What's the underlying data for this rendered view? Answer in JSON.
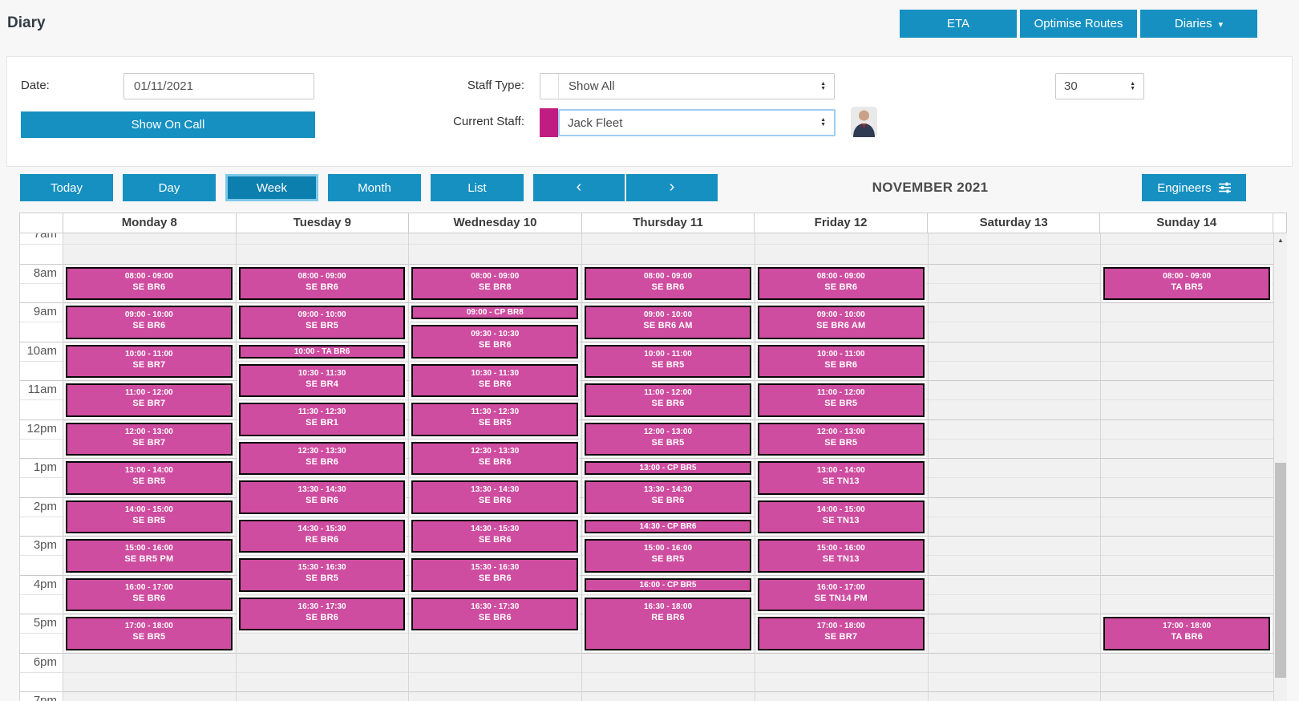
{
  "header": {
    "title": "Diary",
    "buttons": [
      {
        "name": "eta-button",
        "label": "ETA"
      },
      {
        "name": "optimise-routes-button",
        "label": "Optimise Routes"
      },
      {
        "name": "diaries-button",
        "label": "Diaries",
        "caret": true
      }
    ]
  },
  "filters": {
    "date_label": "Date:",
    "date_value": "01/11/2021",
    "show_on_call_label": "Show On Call",
    "staff_type_label": "Staff Type:",
    "staff_type_value": "Show All",
    "current_staff_label": "Current Staff:",
    "current_staff_value": "Jack Fleet",
    "current_staff_color": "#c01d82",
    "page_size_value": "30"
  },
  "toolbar": {
    "view_buttons": [
      "Today",
      "Day",
      "Week",
      "Month",
      "List"
    ],
    "active_view": "Week",
    "prev_icon": "‹",
    "next_icon": "›",
    "title": "NOVEMBER 2021",
    "engineers_label": "Engineers"
  },
  "calendar": {
    "days": [
      "Monday 8",
      "Tuesday 9",
      "Wednesday 10",
      "Thursday 11",
      "Friday 12",
      "Saturday 13",
      "Sunday 14"
    ],
    "time_labels": [
      "7am",
      "8am",
      "9am",
      "10am",
      "11am",
      "12pm",
      "1pm",
      "2pm",
      "3pm",
      "4pm",
      "5pm",
      "6pm",
      "7pm"
    ],
    "event_color": "#ce4da0",
    "events": [
      {
        "day": 0,
        "start": "08:00",
        "end": "09:00",
        "time": "08:00 - 09:00",
        "label": "SE BR6"
      },
      {
        "day": 0,
        "start": "09:00",
        "end": "10:00",
        "time": "09:00 - 10:00",
        "label": "SE BR6"
      },
      {
        "day": 0,
        "start": "10:00",
        "end": "11:00",
        "time": "10:00 - 11:00",
        "label": "SE BR7"
      },
      {
        "day": 0,
        "start": "11:00",
        "end": "12:00",
        "time": "11:00 - 12:00",
        "label": "SE BR7"
      },
      {
        "day": 0,
        "start": "12:00",
        "end": "13:00",
        "time": "12:00 - 13:00",
        "label": "SE BR7"
      },
      {
        "day": 0,
        "start": "13:00",
        "end": "14:00",
        "time": "13:00 - 14:00",
        "label": "SE BR5"
      },
      {
        "day": 0,
        "start": "14:00",
        "end": "15:00",
        "time": "14:00 - 15:00",
        "label": "SE BR5"
      },
      {
        "day": 0,
        "start": "15:00",
        "end": "16:00",
        "time": "15:00 - 16:00",
        "label": "SE BR5 PM"
      },
      {
        "day": 0,
        "start": "16:00",
        "end": "17:00",
        "time": "16:00 - 17:00",
        "label": "SE BR6"
      },
      {
        "day": 0,
        "start": "17:00",
        "end": "18:00",
        "time": "17:00 - 18:00",
        "label": "SE BR5"
      },
      {
        "day": 1,
        "start": "08:00",
        "end": "09:00",
        "time": "08:00 - 09:00",
        "label": "SE BR6"
      },
      {
        "day": 1,
        "start": "09:00",
        "end": "10:00",
        "time": "09:00 - 10:00",
        "label": "SE BR5"
      },
      {
        "day": 1,
        "start": "10:00",
        "end": "10:30",
        "time": "10:00 - TA BR6",
        "label": "",
        "single": true
      },
      {
        "day": 1,
        "start": "10:30",
        "end": "11:30",
        "time": "10:30 - 11:30",
        "label": "SE BR4"
      },
      {
        "day": 1,
        "start": "11:30",
        "end": "12:30",
        "time": "11:30 - 12:30",
        "label": "SE BR1"
      },
      {
        "day": 1,
        "start": "12:30",
        "end": "13:30",
        "time": "12:30 - 13:30",
        "label": "SE BR6"
      },
      {
        "day": 1,
        "start": "13:30",
        "end": "14:30",
        "time": "13:30 - 14:30",
        "label": "SE BR6"
      },
      {
        "day": 1,
        "start": "14:30",
        "end": "15:30",
        "time": "14:30 - 15:30",
        "label": "RE BR6"
      },
      {
        "day": 1,
        "start": "15:30",
        "end": "16:30",
        "time": "15:30 - 16:30",
        "label": "SE BR5"
      },
      {
        "day": 1,
        "start": "16:30",
        "end": "17:30",
        "time": "16:30 - 17:30",
        "label": "SE BR6"
      },
      {
        "day": 2,
        "start": "08:00",
        "end": "09:00",
        "time": "08:00 - 09:00",
        "label": "SE BR8"
      },
      {
        "day": 2,
        "start": "09:00",
        "end": "09:30",
        "time": "09:00 - CP BR8",
        "label": "",
        "single": true
      },
      {
        "day": 2,
        "start": "09:30",
        "end": "10:30",
        "time": "09:30 - 10:30",
        "label": "SE BR6"
      },
      {
        "day": 2,
        "start": "10:30",
        "end": "11:30",
        "time": "10:30 - 11:30",
        "label": "SE BR6"
      },
      {
        "day": 2,
        "start": "11:30",
        "end": "12:30",
        "time": "11:30 - 12:30",
        "label": "SE BR5"
      },
      {
        "day": 2,
        "start": "12:30",
        "end": "13:30",
        "time": "12:30 - 13:30",
        "label": "SE BR6"
      },
      {
        "day": 2,
        "start": "13:30",
        "end": "14:30",
        "time": "13:30 - 14:30",
        "label": "SE BR6"
      },
      {
        "day": 2,
        "start": "14:30",
        "end": "15:30",
        "time": "14:30 - 15:30",
        "label": "SE BR6"
      },
      {
        "day": 2,
        "start": "15:30",
        "end": "16:30",
        "time": "15:30 - 16:30",
        "label": "SE BR6"
      },
      {
        "day": 2,
        "start": "16:30",
        "end": "17:30",
        "time": "16:30 - 17:30",
        "label": "SE BR6"
      },
      {
        "day": 3,
        "start": "08:00",
        "end": "09:00",
        "time": "08:00 - 09:00",
        "label": "SE BR6"
      },
      {
        "day": 3,
        "start": "09:00",
        "end": "10:00",
        "time": "09:00 - 10:00",
        "label": "SE BR6 AM"
      },
      {
        "day": 3,
        "start": "10:00",
        "end": "11:00",
        "time": "10:00 - 11:00",
        "label": "SE BR5"
      },
      {
        "day": 3,
        "start": "11:00",
        "end": "12:00",
        "time": "11:00 - 12:00",
        "label": "SE BR6"
      },
      {
        "day": 3,
        "start": "12:00",
        "end": "13:00",
        "time": "12:00 - 13:00",
        "label": "SE BR5"
      },
      {
        "day": 3,
        "start": "13:00",
        "end": "13:30",
        "time": "13:00 - CP BR5",
        "label": "",
        "single": true
      },
      {
        "day": 3,
        "start": "13:30",
        "end": "14:30",
        "time": "13:30 - 14:30",
        "label": "SE BR6"
      },
      {
        "day": 3,
        "start": "14:30",
        "end": "15:00",
        "time": "14:30 - CP BR6",
        "label": "",
        "single": true
      },
      {
        "day": 3,
        "start": "15:00",
        "end": "16:00",
        "time": "15:00 - 16:00",
        "label": "SE BR5"
      },
      {
        "day": 3,
        "start": "16:00",
        "end": "16:30",
        "time": "16:00 - CP BR5",
        "label": "",
        "single": true
      },
      {
        "day": 3,
        "start": "16:30",
        "end": "18:00",
        "time": "16:30 - 18:00",
        "label": "RE BR6"
      },
      {
        "day": 4,
        "start": "08:00",
        "end": "09:00",
        "time": "08:00 - 09:00",
        "label": "SE BR6"
      },
      {
        "day": 4,
        "start": "09:00",
        "end": "10:00",
        "time": "09:00 - 10:00",
        "label": "SE BR6 AM"
      },
      {
        "day": 4,
        "start": "10:00",
        "end": "11:00",
        "time": "10:00 - 11:00",
        "label": "SE BR6"
      },
      {
        "day": 4,
        "start": "11:00",
        "end": "12:00",
        "time": "11:00 - 12:00",
        "label": "SE BR5"
      },
      {
        "day": 4,
        "start": "12:00",
        "end": "13:00",
        "time": "12:00 - 13:00",
        "label": "SE BR5"
      },
      {
        "day": 4,
        "start": "13:00",
        "end": "14:00",
        "time": "13:00 - 14:00",
        "label": "SE TN13"
      },
      {
        "day": 4,
        "start": "14:00",
        "end": "15:00",
        "time": "14:00 - 15:00",
        "label": "SE TN13"
      },
      {
        "day": 4,
        "start": "15:00",
        "end": "16:00",
        "time": "15:00 - 16:00",
        "label": "SE TN13"
      },
      {
        "day": 4,
        "start": "16:00",
        "end": "17:00",
        "time": "16:00 - 17:00",
        "label": "SE TN14 PM"
      },
      {
        "day": 4,
        "start": "17:00",
        "end": "18:00",
        "time": "17:00 - 18:00",
        "label": "SE BR7"
      },
      {
        "day": 6,
        "start": "08:00",
        "end": "09:00",
        "time": "08:00 - 09:00",
        "label": "TA BR5"
      },
      {
        "day": 6,
        "start": "17:00",
        "end": "18:00",
        "time": "17:00 - 18:00",
        "label": "TA BR6"
      }
    ]
  }
}
